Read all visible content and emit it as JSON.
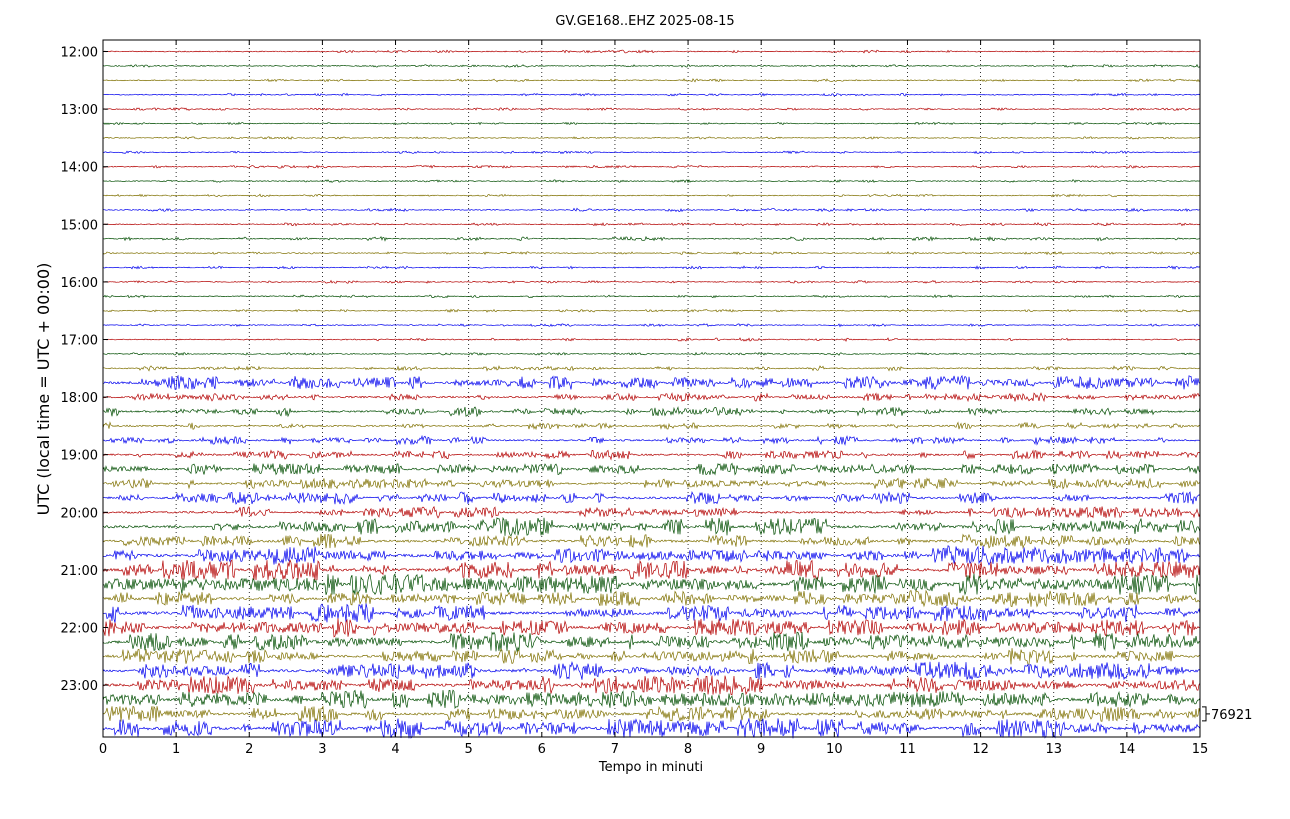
{
  "chart_data": {
    "type": "line",
    "title": "GV.GE168..EHZ 2025-08-15",
    "xlabel": "Tempo in minuti",
    "ylabel": "UTC (local time = UTC + 00:00)",
    "xlim": [
      0,
      15
    ],
    "x_ticks": [
      "0",
      "1",
      "2",
      "3",
      "4",
      "5",
      "6",
      "7",
      "8",
      "9",
      "10",
      "11",
      "12",
      "13",
      "14",
      "15"
    ],
    "y_ticks": [
      "12:00",
      "13:00",
      "14:00",
      "15:00",
      "16:00",
      "17:00",
      "18:00",
      "19:00",
      "20:00",
      "21:00",
      "22:00",
      "23:00"
    ],
    "scale_label": "76921",
    "grid": "vertical dotted",
    "colors": [
      "#b30000",
      "#004d00",
      "#7f7000",
      "#0000ee"
    ],
    "series": [
      {
        "start": "12:00",
        "level": 0.06
      },
      {
        "start": "12:15",
        "level": 0.06
      },
      {
        "start": "12:30",
        "level": 0.06
      },
      {
        "start": "12:45",
        "level": 0.05
      },
      {
        "start": "13:00",
        "level": 0.04
      },
      {
        "start": "13:15",
        "level": 0.04
      },
      {
        "start": "13:30",
        "level": 0.04
      },
      {
        "start": "13:45",
        "level": 0.04
      },
      {
        "start": "14:00",
        "level": 0.05
      },
      {
        "start": "14:15",
        "level": 0.06
      },
      {
        "start": "14:30",
        "level": 0.05
      },
      {
        "start": "14:45",
        "level": 0.08
      },
      {
        "start": "15:00",
        "level": 0.06
      },
      {
        "start": "15:15",
        "level": 0.1
      },
      {
        "start": "15:30",
        "level": 0.05
      },
      {
        "start": "15:45",
        "level": 0.06
      },
      {
        "start": "16:00",
        "level": 0.05
      },
      {
        "start": "16:15",
        "level": 0.05
      },
      {
        "start": "16:30",
        "level": 0.05
      },
      {
        "start": "16:45",
        "level": 0.06
      },
      {
        "start": "17:00",
        "level": 0.07
      },
      {
        "start": "17:15",
        "level": 0.05
      },
      {
        "start": "17:30",
        "level": 0.15
      },
      {
        "start": "17:45",
        "level": 0.55
      },
      {
        "start": "18:00",
        "level": 0.3
      },
      {
        "start": "18:15",
        "level": 0.35
      },
      {
        "start": "18:30",
        "level": 0.25
      },
      {
        "start": "18:45",
        "level": 0.3
      },
      {
        "start": "19:00",
        "level": 0.35
      },
      {
        "start": "19:15",
        "level": 0.45
      },
      {
        "start": "19:30",
        "level": 0.4
      },
      {
        "start": "19:45",
        "level": 0.5
      },
      {
        "start": "20:00",
        "level": 0.45
      },
      {
        "start": "20:15",
        "level": 0.7
      },
      {
        "start": "20:30",
        "level": 0.6
      },
      {
        "start": "20:45",
        "level": 0.75
      },
      {
        "start": "21:00",
        "level": 0.8
      },
      {
        "start": "21:15",
        "level": 0.95
      },
      {
        "start": "21:30",
        "level": 0.7
      },
      {
        "start": "21:45",
        "level": 0.8
      },
      {
        "start": "22:00",
        "level": 0.75
      },
      {
        "start": "22:15",
        "level": 0.85
      },
      {
        "start": "22:30",
        "level": 0.65
      },
      {
        "start": "22:45",
        "level": 0.7
      },
      {
        "start": "23:00",
        "level": 0.75
      },
      {
        "start": "23:15",
        "level": 0.8
      },
      {
        "start": "23:30",
        "level": 0.65
      },
      {
        "start": "23:45",
        "level": 0.8
      }
    ]
  }
}
